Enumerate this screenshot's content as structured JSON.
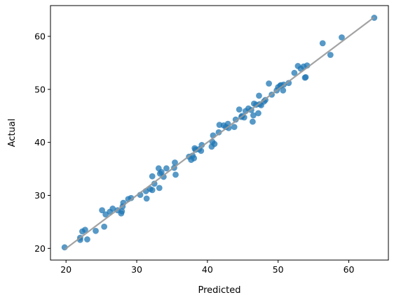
{
  "chart_data": {
    "type": "scatter",
    "xlabel": "Predicted",
    "ylabel": "Actual",
    "xlim": [
      17.8,
      65.6
    ],
    "ylim": [
      17.8,
      65.8
    ],
    "xticks": [
      20,
      30,
      40,
      50,
      60
    ],
    "yticks": [
      20,
      30,
      40,
      50,
      60
    ],
    "grid": false,
    "point_color": "#1f77b4",
    "line_color": "#999999",
    "reference_line": {
      "x": [
        19.8,
        63.6
      ],
      "y": [
        19.8,
        63.6
      ]
    },
    "points": [
      [
        19.8,
        20.2
      ],
      [
        22.0,
        21.6
      ],
      [
        22.0,
        22.0
      ],
      [
        22.3,
        23.2
      ],
      [
        22.7,
        23.5
      ],
      [
        23.0,
        21.7
      ],
      [
        24.2,
        23.3
      ],
      [
        25.1,
        27.2
      ],
      [
        25.4,
        24.1
      ],
      [
        25.6,
        26.4
      ],
      [
        26.2,
        26.9
      ],
      [
        26.6,
        27.5
      ],
      [
        27.3,
        27.2
      ],
      [
        27.8,
        26.6
      ],
      [
        27.9,
        27.0
      ],
      [
        28.1,
        28.6
      ],
      [
        28.0,
        27.9
      ],
      [
        28.8,
        29.3
      ],
      [
        29.2,
        29.5
      ],
      [
        30.5,
        30.1
      ],
      [
        31.3,
        30.8
      ],
      [
        31.4,
        29.4
      ],
      [
        31.9,
        31.2
      ],
      [
        32.2,
        31.0
      ],
      [
        32.2,
        33.6
      ],
      [
        32.5,
        32.2
      ],
      [
        33.1,
        35.1
      ],
      [
        33.2,
        31.4
      ],
      [
        33.3,
        34.1
      ],
      [
        33.5,
        34.4
      ],
      [
        33.8,
        33.5
      ],
      [
        34.2,
        35.1
      ],
      [
        35.3,
        35.2
      ],
      [
        35.4,
        36.2
      ],
      [
        35.5,
        33.9
      ],
      [
        37.4,
        37.3
      ],
      [
        37.7,
        36.7
      ],
      [
        37.9,
        37.5
      ],
      [
        38.1,
        37.0
      ],
      [
        38.3,
        38.6
      ],
      [
        38.2,
        38.9
      ],
      [
        38.8,
        38.7
      ],
      [
        39.1,
        38.4
      ],
      [
        39.2,
        39.5
      ],
      [
        40.6,
        39.2
      ],
      [
        40.7,
        40.1
      ],
      [
        40.8,
        41.3
      ],
      [
        41.0,
        39.7
      ],
      [
        41.6,
        41.9
      ],
      [
        41.7,
        43.3
      ],
      [
        42.3,
        43.2
      ],
      [
        42.6,
        42.9
      ],
      [
        42.9,
        43.5
      ],
      [
        43.0,
        42.7
      ],
      [
        43.8,
        42.9
      ],
      [
        44.0,
        44.3
      ],
      [
        44.5,
        46.2
      ],
      [
        44.8,
        44.8
      ],
      [
        44.9,
        45.0
      ],
      [
        45.2,
        44.7
      ],
      [
        45.4,
        45.9
      ],
      [
        45.8,
        46.4
      ],
      [
        46.2,
        46.1
      ],
      [
        46.4,
        43.9
      ],
      [
        46.5,
        45.1
      ],
      [
        46.6,
        47.3
      ],
      [
        46.9,
        47.1
      ],
      [
        47.2,
        45.5
      ],
      [
        47.3,
        48.8
      ],
      [
        47.4,
        47.2
      ],
      [
        47.6,
        47.0
      ],
      [
        48.0,
        47.7
      ],
      [
        48.2,
        48.0
      ],
      [
        48.7,
        51.1
      ],
      [
        49.1,
        49.0
      ],
      [
        49.8,
        49.8
      ],
      [
        50.0,
        50.4
      ],
      [
        50.3,
        50.7
      ],
      [
        50.4,
        50.8
      ],
      [
        50.7,
        49.8
      ],
      [
        50.8,
        50.9
      ],
      [
        51.5,
        51.2
      ],
      [
        52.3,
        53.1
      ],
      [
        52.8,
        54.4
      ],
      [
        53.2,
        53.9
      ],
      [
        53.6,
        54.3
      ],
      [
        53.8,
        52.2
      ],
      [
        53.9,
        52.3
      ],
      [
        54.1,
        54.5
      ],
      [
        56.3,
        58.7
      ],
      [
        57.4,
        56.5
      ],
      [
        59.0,
        59.8
      ],
      [
        63.6,
        63.5
      ]
    ]
  }
}
